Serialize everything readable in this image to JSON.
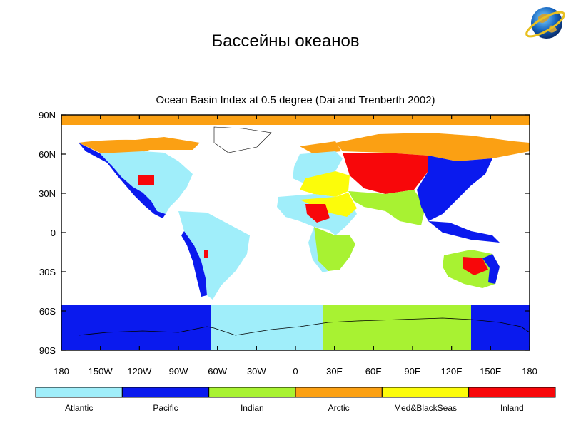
{
  "slide": {
    "title": "Бассейны океанов"
  },
  "map": {
    "title": "Ocean Basin Index at 0.5 degree (Dai and Trenberth 2002)",
    "lat_ticks": [
      "90N",
      "60N",
      "30N",
      "0",
      "30S",
      "60S",
      "90S"
    ],
    "lon_ticks": [
      "180",
      "150W",
      "120W",
      "90W",
      "60W",
      "30W",
      "0",
      "30E",
      "60E",
      "90E",
      "120E",
      "150E",
      "180"
    ],
    "legend": [
      {
        "label": "Atlantic",
        "color": "#a0eefa"
      },
      {
        "label": "Pacific",
        "color": "#0a1aee"
      },
      {
        "label": "Indian",
        "color": "#a8f232"
      },
      {
        "label": "Arctic",
        "color": "#fba013"
      },
      {
        "label": "Med&BlackSeas",
        "color": "#fcfc0a"
      },
      {
        "label": "Inland",
        "color": "#f8070a"
      }
    ]
  },
  "logo": {
    "icon": "globe-icon"
  }
}
